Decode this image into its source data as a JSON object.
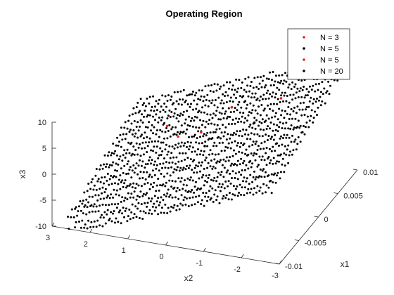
{
  "chart_data": {
    "type": "scatter",
    "title": "Operating Region",
    "xlabel": "x1",
    "ylabel": "x2",
    "zlabel": "x3",
    "xlim": [
      -0.01,
      0.01
    ],
    "ylim": [
      -3,
      3
    ],
    "zlim": [
      -10,
      10
    ],
    "x_ticks": [
      "-0.01",
      "-0.005",
      "0",
      "0.005",
      "0.01"
    ],
    "y_ticks": [
      "3",
      "2",
      "1",
      "0",
      "-1",
      "-2",
      "-3"
    ],
    "z_ticks": [
      "10",
      "5",
      "0",
      "-5",
      "-10"
    ],
    "legend_position": "top-right",
    "series": [
      {
        "name": "N = 3",
        "color": "#e8231f",
        "points": [
          [
            0.002,
            1.2,
            0.6
          ],
          [
            0.004,
            -0.3,
            4.2
          ],
          [
            -0.001,
            0.6,
            2.0
          ]
        ]
      },
      {
        "name": "N = 5",
        "color": "#000000",
        "points": [
          [
            0.0,
            0.0,
            0.0
          ],
          [
            0.003,
            -1.0,
            3.0
          ]
        ]
      },
      {
        "name": "N = 5",
        "color": "#e8231f",
        "points": [
          [
            0.005,
            -1.5,
            6.5
          ],
          [
            0.001,
            0.2,
            1.5
          ]
        ]
      },
      {
        "name": "N = 20",
        "color": "#000000",
        "grid": {
          "x1_range": [
            -0.01,
            0.01
          ],
          "x2_range": [
            -2.8,
            2.8
          ],
          "x3_formula": "x3 = -2.7*x2 + 350*x1 + noise",
          "description": "dense grid of states over the operating region"
        }
      }
    ]
  }
}
